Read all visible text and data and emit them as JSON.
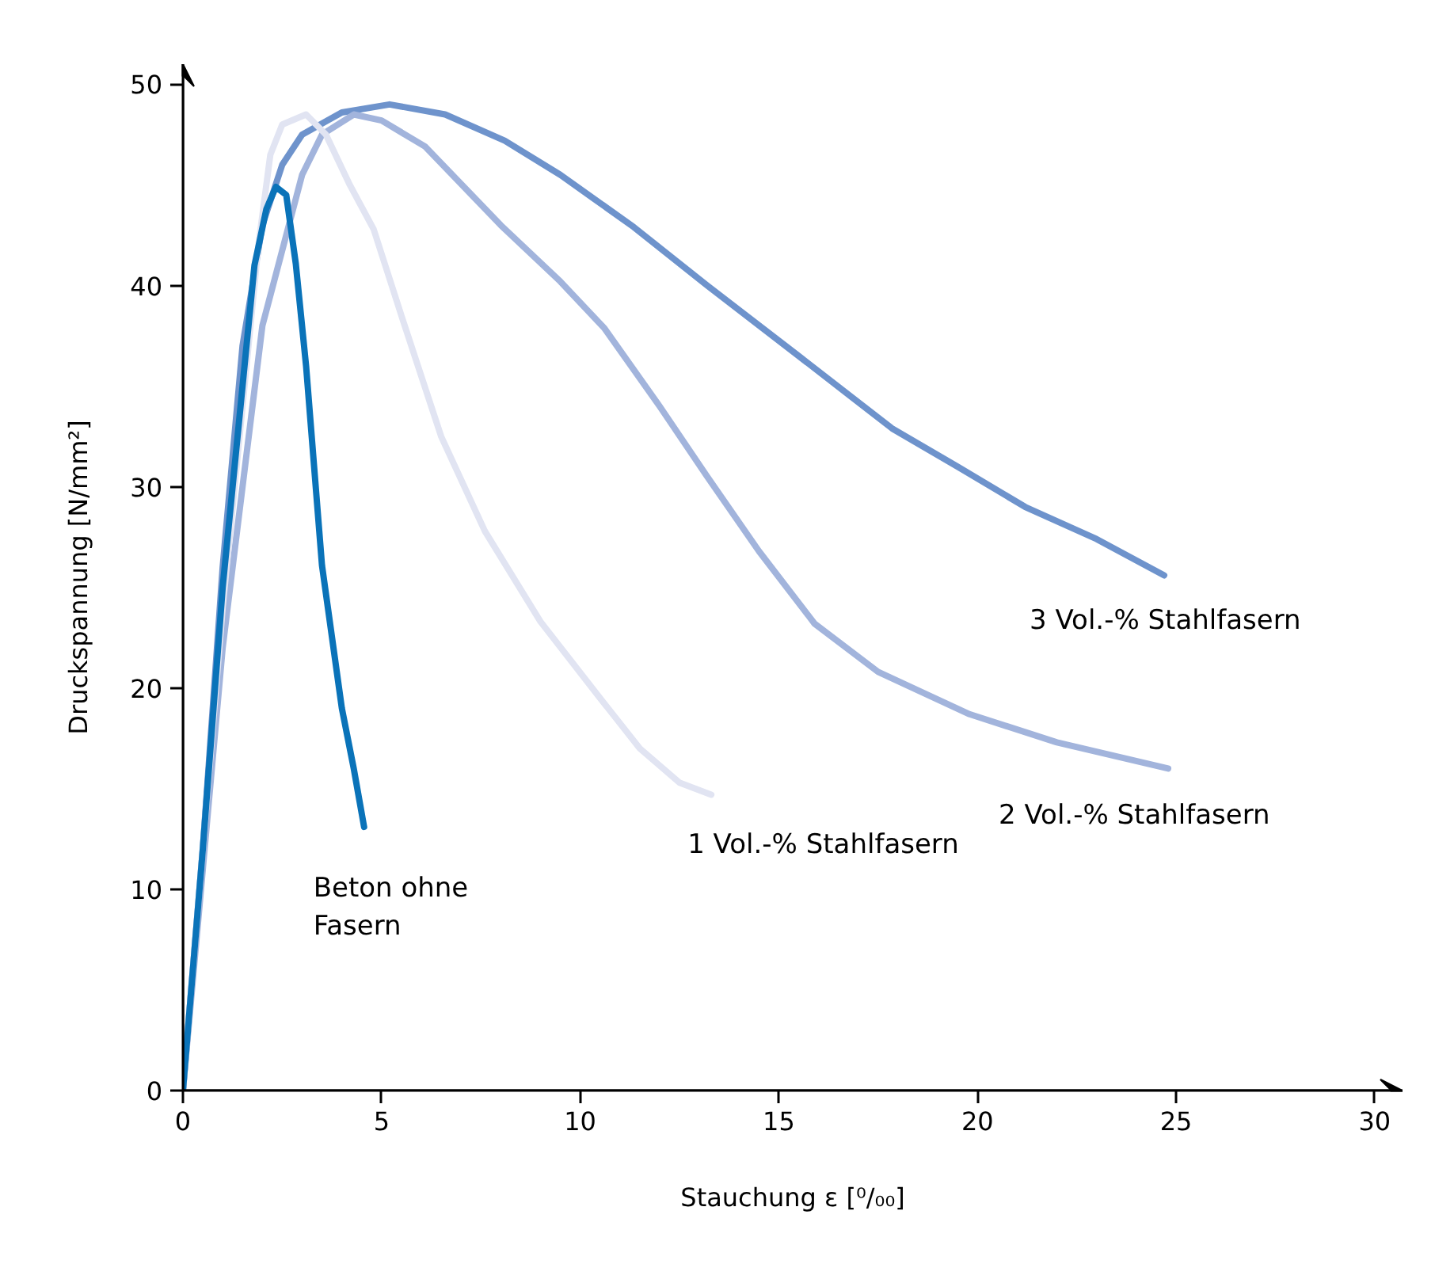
{
  "chart_data": {
    "type": "line",
    "xlabel": "Stauchung ε [⁰/₀₀]",
    "ylabel": "Druckspannung [N/mm²]",
    "xlim": [
      0,
      30.7
    ],
    "ylim": [
      0,
      51
    ],
    "xticks": [
      0,
      5,
      10,
      15,
      20,
      25,
      30
    ],
    "yticks": [
      0,
      10,
      20,
      30,
      40,
      50
    ],
    "grid": false,
    "series": [
      {
        "name": "Beton ohne\nFasern",
        "color": "#0a73b9",
        "x": [
          0,
          0.5,
          1,
          1.5,
          1.8,
          2.1,
          2.34,
          2.6,
          2.84,
          3.1,
          3.5,
          4.0,
          4.3,
          4.56
        ],
        "values": [
          0,
          12,
          25,
          35,
          41,
          43.8,
          44.9,
          44.5,
          41.1,
          36,
          26.1,
          19,
          16,
          13.1
        ]
      },
      {
        "name": "1 Vol.-% Stahlfasern",
        "color": "#e1e4f2",
        "x": [
          0,
          0.5,
          1,
          1.5,
          1.9,
          2.2,
          2.5,
          3.1,
          3.6,
          4.2,
          4.8,
          5.5,
          6.5,
          7.6,
          9,
          10.5,
          11.5,
          12.5,
          13.3
        ],
        "values": [
          0,
          12,
          24,
          34,
          42,
          46.5,
          48,
          48.5,
          47.5,
          45,
          42.8,
          38.5,
          32.5,
          27.8,
          23.3,
          19.5,
          17,
          15.3,
          14.7
        ]
      },
      {
        "name": "2 Vol.-% Stahlfasern",
        "color": "#a2b4dc",
        "x": [
          0,
          1,
          2,
          3,
          3.5,
          4.3,
          5,
          6.1,
          8,
          9.5,
          10.6,
          12,
          13.2,
          14.5,
          15.9,
          17.5,
          19.8,
          22,
          24.8
        ],
        "values": [
          0,
          22,
          38,
          45.5,
          47.5,
          48.5,
          48.2,
          46.9,
          43,
          40.2,
          37.9,
          34,
          30.5,
          26.8,
          23.2,
          20.8,
          18.7,
          17.3,
          16
        ]
      },
      {
        "name": "3 Vol.-% Stahlfasern",
        "color": "#6e93cc",
        "x": [
          0,
          0.5,
          1,
          1.5,
          2,
          2.5,
          3,
          4,
          5.2,
          6.6,
          8.1,
          9.5,
          11.35,
          13.2,
          15.5,
          17.85,
          19.5,
          21.2,
          23,
          24.7
        ],
        "values": [
          0,
          12,
          26,
          37,
          43,
          46,
          47.5,
          48.6,
          49,
          48.5,
          47.2,
          45.5,
          42.9,
          40,
          36.5,
          32.9,
          31,
          29,
          27.4,
          25.6
        ]
      }
    ]
  }
}
